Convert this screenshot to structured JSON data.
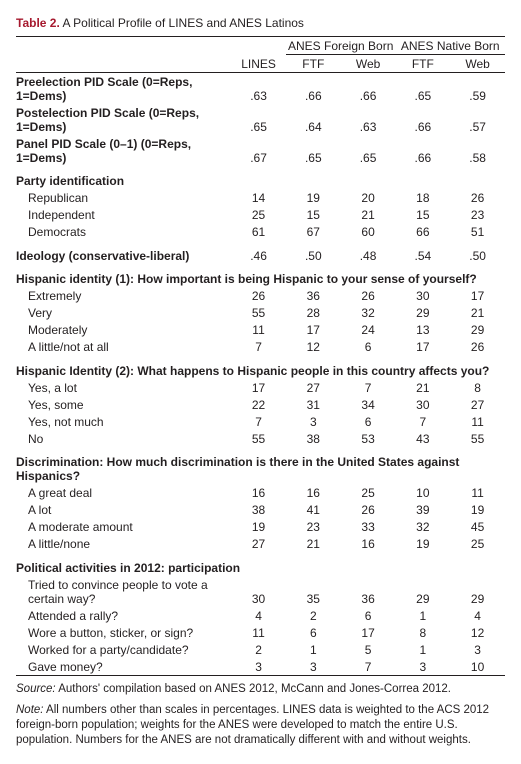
{
  "title_label": "Table 2.",
  "title_text": "A Political Profile of LINES and ANES Latinos",
  "group_headers": {
    "g1": "ANES Foreign Born",
    "g2": "ANES Native Born"
  },
  "col_headers": {
    "c1": "LINES",
    "c2": "FTF",
    "c3": "Web",
    "c4": "FTF",
    "c5": "Web"
  },
  "rows": {
    "pre_pid": {
      "label": "Preelection PID Scale (0=Reps, 1=Dems)",
      "v": [
        ".63",
        ".66",
        ".66",
        ".65",
        ".59"
      ]
    },
    "post_pid": {
      "label": "Postelection PID Scale (0=Reps, 1=Dems)",
      "v": [
        ".65",
        ".64",
        ".63",
        ".66",
        ".57"
      ]
    },
    "panel_pid": {
      "label": "Panel PID Scale (0–1) (0=Reps, 1=Dems)",
      "v": [
        ".67",
        ".65",
        ".65",
        ".66",
        ".58"
      ]
    },
    "party_hdr": {
      "label": "Party identification"
    },
    "rep": {
      "label": "Republican",
      "v": [
        "14",
        "19",
        "20",
        "18",
        "26"
      ]
    },
    "ind": {
      "label": "Independent",
      "v": [
        "25",
        "15",
        "21",
        "15",
        "23"
      ]
    },
    "dem": {
      "label": "Democrats",
      "v": [
        "61",
        "67",
        "60",
        "66",
        "51"
      ]
    },
    "ideology": {
      "label": "Ideology (conservative-liberal)",
      "v": [
        ".46",
        ".50",
        ".48",
        ".54",
        ".50"
      ]
    },
    "hisp1_hdr": {
      "label": "Hispanic identity (1): How important is being Hispanic to your sense of yourself?"
    },
    "h1_ext": {
      "label": "Extremely",
      "v": [
        "26",
        "36",
        "26",
        "30",
        "17"
      ]
    },
    "h1_very": {
      "label": "Very",
      "v": [
        "55",
        "28",
        "32",
        "29",
        "21"
      ]
    },
    "h1_mod": {
      "label": "Moderately",
      "v": [
        "11",
        "17",
        "24",
        "13",
        "29"
      ]
    },
    "h1_lit": {
      "label": "A little/not at all",
      "v": [
        "7",
        "12",
        "6",
        "17",
        "26"
      ]
    },
    "hisp2_hdr": {
      "label": "Hispanic Identity (2): What happens to Hispanic people in this country affects you?"
    },
    "h2_lot": {
      "label": "Yes, a lot",
      "v": [
        "17",
        "27",
        "7",
        "21",
        "8"
      ]
    },
    "h2_some": {
      "label": "Yes, some",
      "v": [
        "22",
        "31",
        "34",
        "30",
        "27"
      ]
    },
    "h2_nm": {
      "label": "Yes, not much",
      "v": [
        "7",
        "3",
        "6",
        "7",
        "11"
      ]
    },
    "h2_no": {
      "label": "No",
      "v": [
        "55",
        "38",
        "53",
        "43",
        "55"
      ]
    },
    "disc_hdr": {
      "label": "Discrimination: How much discrimination is there in the United States against Hispanics?"
    },
    "d_gd": {
      "label": "A great deal",
      "v": [
        "16",
        "16",
        "25",
        "10",
        "11"
      ]
    },
    "d_lot": {
      "label": "A lot",
      "v": [
        "38",
        "41",
        "26",
        "39",
        "19"
      ]
    },
    "d_mod": {
      "label": "A moderate amount",
      "v": [
        "19",
        "23",
        "33",
        "32",
        "45"
      ]
    },
    "d_lit": {
      "label": "A little/none",
      "v": [
        "27",
        "21",
        "16",
        "19",
        "25"
      ]
    },
    "pol_hdr": {
      "label": "Political activities in 2012: participation"
    },
    "p_conv": {
      "label": "Tried to convince people to vote a certain way?",
      "v": [
        "30",
        "35",
        "36",
        "29",
        "29"
      ]
    },
    "p_rally": {
      "label": "Attended a rally?",
      "v": [
        "4",
        "2",
        "6",
        "1",
        "4"
      ]
    },
    "p_wore": {
      "label": "Wore a button, sticker, or sign?",
      "v": [
        "11",
        "6",
        "17",
        "8",
        "12"
      ]
    },
    "p_work": {
      "label": "Worked for a party/candidate?",
      "v": [
        "2",
        "1",
        "5",
        "1",
        "3"
      ]
    },
    "p_gave": {
      "label": "Gave money?",
      "v": [
        "3",
        "3",
        "7",
        "3",
        "10"
      ]
    }
  },
  "source_label": "Source:",
  "source_text": " Authors' compilation based on ANES 2012, McCann and Jones-Correa 2012.",
  "note_label": "Note:",
  "note_text": " All numbers other than scales in percentages. LINES data is weighted to the ACS 2012 foreign-born population; weights for the ANES were developed to match the entire U.S. population. Numbers for the ANES are not dramatically different with and without weights."
}
